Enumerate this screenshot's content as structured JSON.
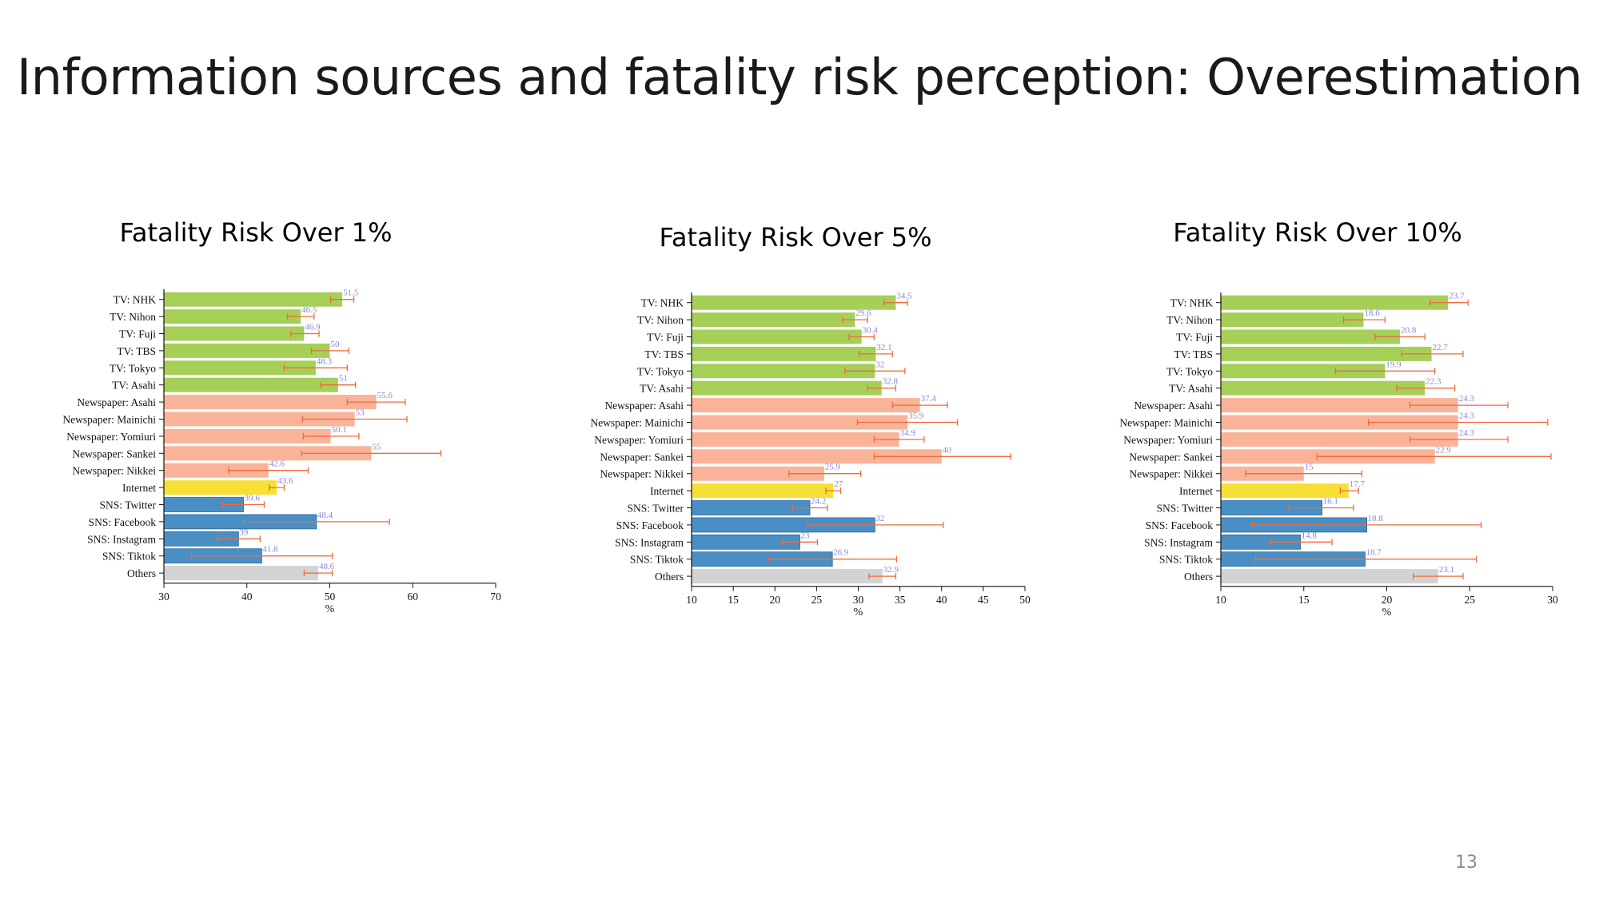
{
  "title": "Information sources and fatality risk perception: Overestimation",
  "page_number": "13",
  "colors": {
    "tv": "#a6cf57",
    "newspaper": "#f9b398",
    "internet": "#f7e035",
    "sns": "#4a8fc4",
    "others": "#d3d3d3",
    "error_bar": "#f06a3c",
    "value_label": "#8a86d6"
  },
  "chart_data": [
    {
      "type": "bar",
      "orientation": "horizontal",
      "title": "Fatality Risk Over 1%",
      "xlabel": "%",
      "xlim": [
        30,
        70
      ],
      "xticks": [
        30,
        40,
        50,
        60,
        70
      ],
      "categories": [
        "TV: NHK",
        "TV: Nihon",
        "TV: Fuji",
        "TV: TBS",
        "TV: Tokyo",
        "TV: Asahi",
        "Newspaper: Asahi",
        "Newspaper: Mainichi",
        "Newspaper: Yomiuri",
        "Newspaper: Sankei",
        "Newspaper: Nikkei",
        "Internet",
        "SNS: Twitter",
        "SNS: Facebook",
        "SNS: Instagram",
        "SNS: Tiktok",
        "Others"
      ],
      "groups": [
        "tv",
        "tv",
        "tv",
        "tv",
        "tv",
        "tv",
        "newspaper",
        "newspaper",
        "newspaper",
        "newspaper",
        "newspaper",
        "internet",
        "sns",
        "sns",
        "sns",
        "sns",
        "others"
      ],
      "values": [
        51.5,
        46.5,
        46.9,
        50,
        48.3,
        51,
        55.6,
        53,
        50.1,
        55,
        42.6,
        43.6,
        39.6,
        48.4,
        39,
        41.8,
        48.6
      ],
      "error_low": [
        50.1,
        44.9,
        45.3,
        47.8,
        44.5,
        48.9,
        52.1,
        46.7,
        46.8,
        46.6,
        37.8,
        42.7,
        37.1,
        39.6,
        36.5,
        33.3,
        46.9
      ],
      "error_high": [
        52.9,
        48.1,
        48.7,
        52.3,
        52.1,
        53.1,
        59.1,
        59.3,
        53.5,
        63.4,
        47.4,
        44.5,
        42.1,
        57.2,
        41.6,
        50.3,
        50.3
      ]
    },
    {
      "type": "bar",
      "orientation": "horizontal",
      "title": "Fatality Risk Over 5%",
      "xlabel": "%",
      "xlim": [
        10,
        50
      ],
      "xticks": [
        10,
        15,
        20,
        25,
        30,
        35,
        40,
        45,
        50
      ],
      "categories": [
        "TV: NHK",
        "TV: Nihon",
        "TV: Fuji",
        "TV: TBS",
        "TV: Tokyo",
        "TV: Asahi",
        "Newspaper: Asahi",
        "Newspaper: Mainichi",
        "Newspaper: Yomiuri",
        "Newspaper: Sankei",
        "Newspaper: Nikkei",
        "Internet",
        "SNS: Twitter",
        "SNS: Facebook",
        "SNS: Instagram",
        "SNS: Tiktok",
        "Others"
      ],
      "groups": [
        "tv",
        "tv",
        "tv",
        "tv",
        "tv",
        "tv",
        "newspaper",
        "newspaper",
        "newspaper",
        "newspaper",
        "newspaper",
        "internet",
        "sns",
        "sns",
        "sns",
        "sns",
        "others"
      ],
      "values": [
        34.5,
        29.6,
        30.4,
        32.1,
        32,
        32.8,
        37.4,
        35.9,
        34.9,
        40,
        25.9,
        27,
        24.2,
        32,
        23,
        26.9,
        32.9
      ],
      "error_low": [
        33.1,
        28.1,
        28.9,
        30.1,
        28.4,
        31.1,
        34.1,
        29.9,
        31.9,
        31.9,
        21.7,
        26.1,
        22.1,
        23.9,
        20.9,
        19.2,
        31.3
      ],
      "error_high": [
        35.9,
        31.1,
        31.9,
        34.1,
        35.6,
        34.5,
        40.7,
        41.9,
        37.9,
        48.3,
        30.3,
        27.9,
        26.3,
        40.2,
        25.1,
        34.6,
        34.5
      ]
    },
    {
      "type": "bar",
      "orientation": "horizontal",
      "title": "Fatality Risk Over 10%",
      "xlabel": "%",
      "xlim": [
        10,
        30
      ],
      "xticks": [
        10,
        15,
        20,
        25,
        30
      ],
      "categories": [
        "TV: NHK",
        "TV: Nihon",
        "TV: Fuji",
        "TV: TBS",
        "TV: Tokyo",
        "TV: Asahi",
        "Newspaper: Asahi",
        "Newspaper: Mainichi",
        "Newspaper: Yomiuri",
        "Newspaper: Sankei",
        "Newspaper: Nikkei",
        "Internet",
        "SNS: Twitter",
        "SNS: Facebook",
        "SNS: Instagram",
        "SNS: Tiktok",
        "Others"
      ],
      "groups": [
        "tv",
        "tv",
        "tv",
        "tv",
        "tv",
        "tv",
        "newspaper",
        "newspaper",
        "newspaper",
        "newspaper",
        "newspaper",
        "internet",
        "sns",
        "sns",
        "sns",
        "sns",
        "others"
      ],
      "values": [
        23.7,
        18.6,
        20.8,
        22.7,
        19.9,
        22.3,
        24.3,
        24.3,
        24.3,
        22.9,
        15,
        17.7,
        16.1,
        18.8,
        14.8,
        18.7,
        23.1
      ],
      "error_low": [
        22.6,
        17.4,
        19.3,
        20.9,
        16.9,
        20.6,
        21.4,
        18.9,
        21.4,
        15.8,
        11.5,
        17.2,
        14.1,
        11.9,
        13,
        12.1,
        21.6
      ],
      "error_high": [
        24.9,
        19.9,
        22.3,
        24.6,
        22.9,
        24.1,
        27.3,
        29.7,
        27.3,
        29.9,
        18.5,
        18.3,
        18,
        25.7,
        16.7,
        25.4,
        24.6
      ]
    }
  ]
}
